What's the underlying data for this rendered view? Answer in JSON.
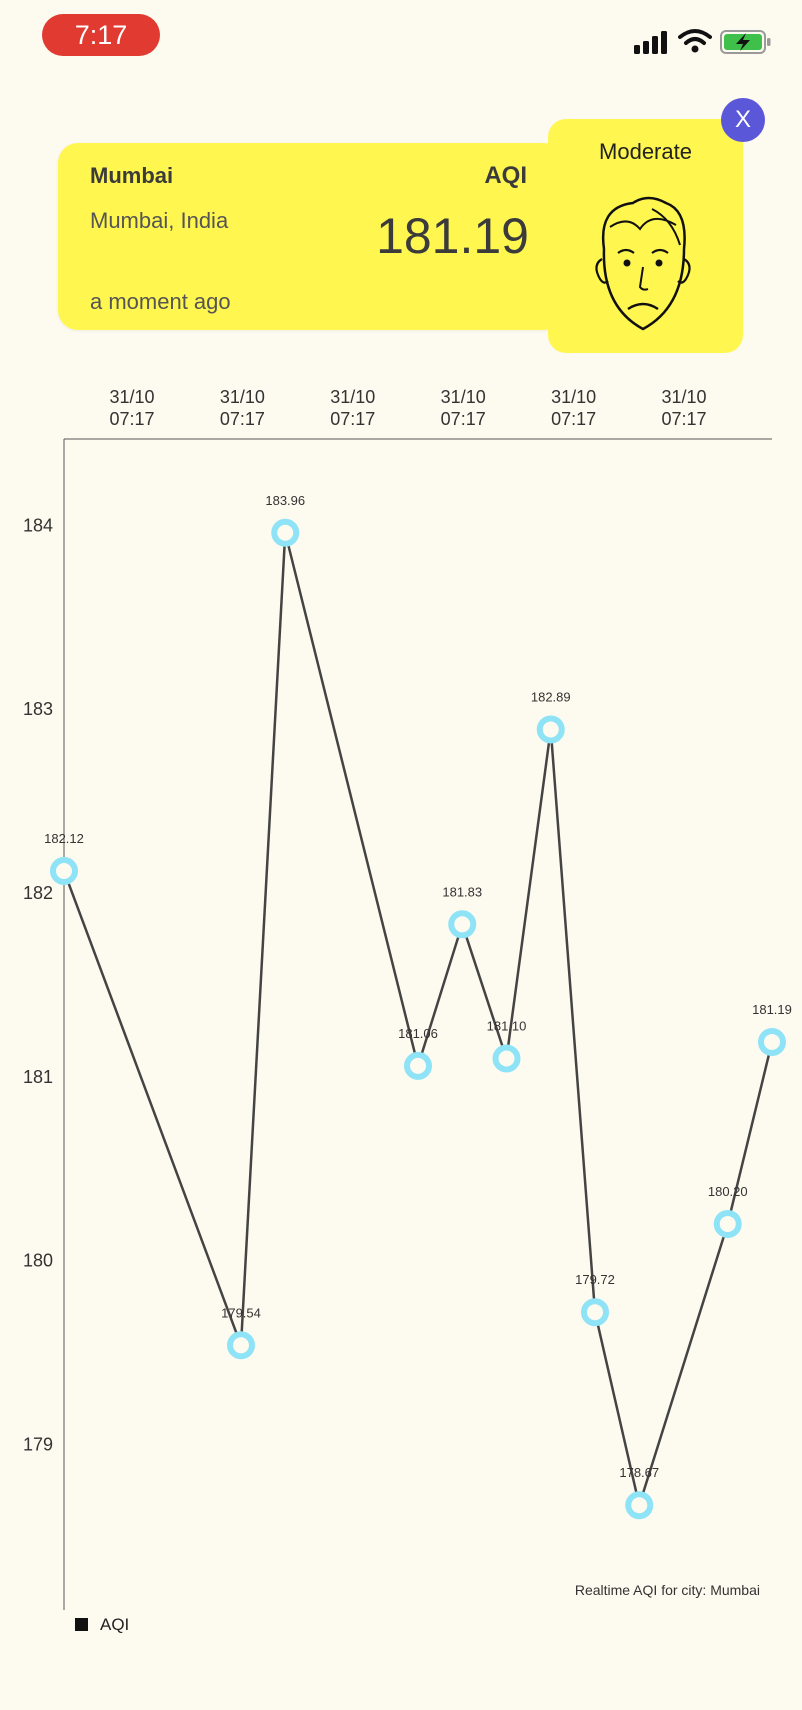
{
  "status_bar": {
    "time": "7:17"
  },
  "card": {
    "city": "Mumbai",
    "location": "Mumbai, India",
    "updated": "a moment ago",
    "aqi_label": "AQI",
    "aqi_value": "181.19",
    "background": "#fff64f"
  },
  "mood": {
    "label": "Moderate",
    "icon": "worried-face-icon"
  },
  "close_button": {
    "label": "X",
    "color": "#5b57d9"
  },
  "chart_data": {
    "type": "line",
    "x_tick_labels": [
      [
        "31/10",
        "07:17"
      ],
      [
        "31/10",
        "07:17"
      ],
      [
        "31/10",
        "07:17"
      ],
      [
        "31/10",
        "07:17"
      ],
      [
        "31/10",
        "07:17"
      ],
      [
        "31/10",
        "07:17"
      ]
    ],
    "y_ticks": [
      184,
      183,
      182,
      181,
      180,
      179
    ],
    "ylim": [
      178.1,
      184.47
    ],
    "series": [
      {
        "name": "AQI",
        "values": [
          182.12,
          179.54,
          183.96,
          181.06,
          181.83,
          181.1,
          182.89,
          179.72,
          178.67,
          180.2,
          181.19
        ],
        "labels": [
          "182.12",
          "179.54",
          "183.96",
          "181.06",
          "181.83",
          "181.10",
          "182.89",
          "179.72",
          "178.67",
          "180.20",
          "181.19"
        ],
        "x_positions": [
          0,
          4,
          5,
          8,
          9,
          10,
          11,
          12,
          13,
          15,
          16
        ],
        "x_max": 16,
        "line_color": "#444444",
        "marker_color": "#8ee3f6"
      }
    ],
    "caption": "Realtime AQI for city: Mumbai",
    "legend": {
      "label": "AQI",
      "placement": "bottom-left"
    }
  }
}
